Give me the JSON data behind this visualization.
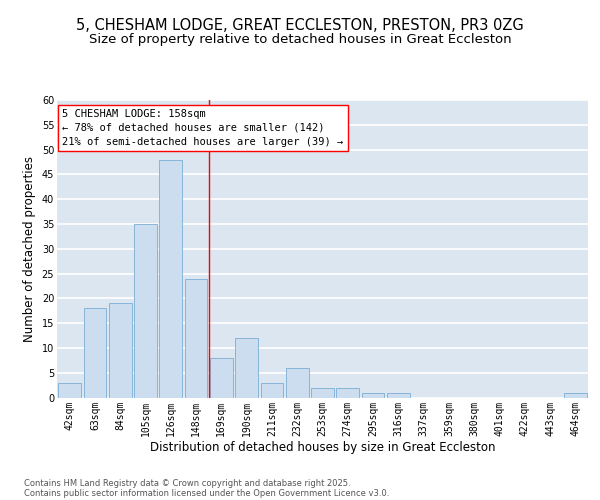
{
  "title_line1": "5, CHESHAM LODGE, GREAT ECCLESTON, PRESTON, PR3 0ZG",
  "title_line2": "Size of property relative to detached houses in Great Eccleston",
  "xlabel": "Distribution of detached houses by size in Great Eccleston",
  "ylabel": "Number of detached properties",
  "bar_labels": [
    "42sqm",
    "63sqm",
    "84sqm",
    "105sqm",
    "126sqm",
    "148sqm",
    "169sqm",
    "190sqm",
    "211sqm",
    "232sqm",
    "253sqm",
    "274sqm",
    "295sqm",
    "316sqm",
    "337sqm",
    "359sqm",
    "380sqm",
    "401sqm",
    "422sqm",
    "443sqm",
    "464sqm"
  ],
  "bar_values": [
    3,
    18,
    19,
    35,
    48,
    24,
    8,
    12,
    3,
    6,
    2,
    2,
    1,
    1,
    0,
    0,
    0,
    0,
    0,
    0,
    1
  ],
  "bar_color": "#ccddf0",
  "bar_edge_color": "#7aadd4",
  "background_color": "#dce6f0",
  "grid_color": "#ffffff",
  "red_line_x": 5.5,
  "annotation_text": "5 CHESHAM LODGE: 158sqm\n← 78% of detached houses are smaller (142)\n21% of semi-detached houses are larger (39) →",
  "ylim": [
    0,
    60
  ],
  "yticks": [
    0,
    5,
    10,
    15,
    20,
    25,
    30,
    35,
    40,
    45,
    50,
    55,
    60
  ],
  "footer_line1": "Contains HM Land Registry data © Crown copyright and database right 2025.",
  "footer_line2": "Contains public sector information licensed under the Open Government Licence v3.0.",
  "title_fontsize": 10.5,
  "subtitle_fontsize": 9.5,
  "axis_label_fontsize": 8.5,
  "tick_fontsize": 7,
  "annotation_fontsize": 7.5,
  "footer_fontsize": 6
}
